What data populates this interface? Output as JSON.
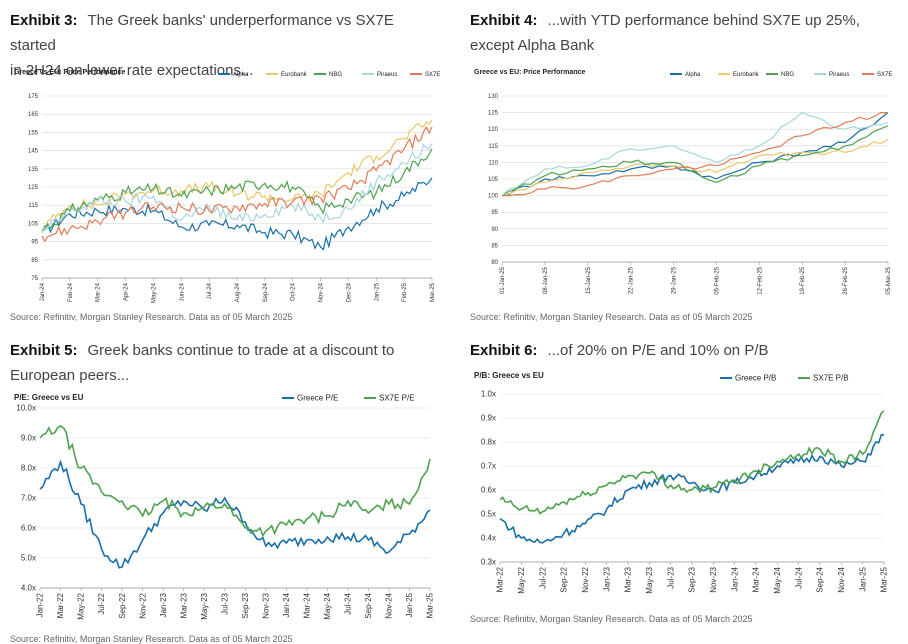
{
  "exhibits": [
    {
      "number": "Exhibit 3:",
      "title_line1": "The Greek banks' underperformance vs SX7E started",
      "title_line2": "in 2H24 on lower rate expectations...",
      "source": "Source: Refinitiv, Morgan Stanley Research. Data as of 05 March 2025"
    },
    {
      "number": "Exhibit 4:",
      "title_line1": "...with YTD performance behind SX7E up 25%,",
      "title_line2": "except Alpha Bank",
      "source": "Source: Refinitiv, Morgan Stanley Research. Data as of 05 March 2025"
    },
    {
      "number": "Exhibit 5:",
      "title_line1": "Greek banks continue to trade at a discount to",
      "title_line2": "European peers...",
      "source": "Source: Refinitiv, Morgan Stanley Research. Data as of 05 March 2025"
    },
    {
      "number": "Exhibit 6:",
      "title_line1": "...of 20% on P/E and 10% on P/B",
      "title_line2": "",
      "source": "Source: Refinitiv, Morgan Stanley Research. Data as of 05 March 2025"
    }
  ],
  "chart_data": [
    {
      "type": "line",
      "title": "Greece vs EU: Price Performance",
      "ylim": [
        75,
        175
      ],
      "yticks": [
        "75",
        "85",
        "95",
        "105",
        "115",
        "125",
        "135",
        "145",
        "155",
        "165",
        "175"
      ],
      "x": [
        "Jan-24",
        "Feb-24",
        "Mar-24",
        "Apr-24",
        "May-24",
        "Jun-24",
        "Jul-24",
        "Aug-24",
        "Sep-24",
        "Oct-24",
        "Nov-24",
        "Dec-24",
        "Jan-25",
        "Feb-25",
        "Mar-25"
      ],
      "legend_position": "top-right",
      "series": [
        {
          "name": "Alpha",
          "color": "#1a6fa8",
          "values": [
            100,
            110,
            112,
            113,
            112,
            103,
            104,
            104,
            100,
            99,
            92,
            103,
            113,
            120,
            130
          ]
        },
        {
          "name": "Eurobank",
          "color": "#e8c86a",
          "values": [
            102,
            115,
            115,
            121,
            123,
            123,
            125,
            121,
            120,
            118,
            121,
            133,
            142,
            152,
            162
          ]
        },
        {
          "name": "NBG",
          "color": "#4ea24e",
          "values": [
            101,
            112,
            118,
            122,
            124,
            120,
            123,
            125,
            127,
            125,
            113,
            118,
            122,
            133,
            146
          ]
        },
        {
          "name": "Piraeus",
          "color": "#a8d5dd",
          "values": [
            100,
            111,
            117,
            117,
            120,
            107,
            114,
            107,
            110,
            115,
            108,
            113,
            128,
            138,
            149
          ]
        },
        {
          "name": "SX7E",
          "color": "#e07b56",
          "values": [
            98,
            102,
            106,
            111,
            114,
            114,
            112,
            114,
            116,
            117,
            119,
            124,
            134,
            146,
            158
          ]
        }
      ]
    },
    {
      "type": "line",
      "title": "Greece vs EU: Price Performance",
      "ylim": [
        80,
        130
      ],
      "yticks": [
        "80",
        "85",
        "90",
        "95",
        "100",
        "105",
        "110",
        "115",
        "120",
        "125",
        "130"
      ],
      "x": [
        "01-Jan-25",
        "08-Jan-25",
        "15-Jan-25",
        "22-Jan-25",
        "29-Jan-25",
        "05-Feb-25",
        "12-Feb-25",
        "19-Feb-25",
        "26-Feb-25",
        "05-Mar-25"
      ],
      "legend_position": "top-right",
      "series": [
        {
          "name": "Alpha",
          "color": "#1a6fa8",
          "values": [
            100,
            105,
            106,
            108,
            109,
            105,
            110,
            113,
            116,
            125
          ]
        },
        {
          "name": "Eurobank",
          "color": "#e8c86a",
          "values": [
            100,
            104,
            107,
            109,
            109,
            107,
            112,
            113,
            113,
            117
          ]
        },
        {
          "name": "NBG",
          "color": "#4ea24e",
          "values": [
            100,
            106,
            108,
            110,
            110,
            104,
            109,
            112,
            115,
            121
          ]
        },
        {
          "name": "Piraeus",
          "color": "#a8d5dd",
          "values": [
            100,
            108,
            109,
            114,
            115,
            110,
            115,
            125,
            120,
            122
          ]
        },
        {
          "name": "SX7E",
          "color": "#e07b56",
          "values": [
            100,
            102,
            103,
            106,
            108,
            109,
            113,
            118,
            122,
            125
          ]
        }
      ]
    },
    {
      "type": "line",
      "title": "P/E: Greece vs EU",
      "ylim": [
        4.0,
        10.0
      ],
      "yticks": [
        "4.0x",
        "5.0x",
        "6.0x",
        "7.0x",
        "8.0x",
        "9.0x",
        "10.0x"
      ],
      "x": [
        "Jan-22",
        "Mar-22",
        "May-22",
        "Jul-22",
        "Sep-22",
        "Nov-22",
        "Jan-23",
        "Mar-23",
        "May-23",
        "Jul-23",
        "Sep-23",
        "Nov-23",
        "Jan-24",
        "Mar-24",
        "May-24",
        "Jul-24",
        "Sep-24",
        "Nov-24",
        "Jan-25",
        "Mar-25"
      ],
      "legend_position": "top-right",
      "series": [
        {
          "name": "Greece P/E",
          "color": "#1a6fa8",
          "values": [
            7.3,
            8.2,
            6.8,
            5.3,
            4.7,
            5.6,
            6.5,
            6.9,
            6.6,
            7.0,
            6.2,
            5.4,
            5.5,
            5.6,
            5.7,
            5.7,
            5.6,
            5.2,
            5.8,
            6.6
          ]
        },
        {
          "name": "SX7E P/E",
          "color": "#4ea24e",
          "values": [
            9.0,
            9.4,
            8.0,
            7.2,
            6.9,
            6.4,
            6.9,
            6.5,
            6.7,
            6.8,
            6.0,
            5.9,
            6.1,
            6.3,
            6.4,
            6.9,
            6.5,
            6.8,
            6.8,
            8.3
          ]
        }
      ]
    },
    {
      "type": "line",
      "title": "P/B: Greece vs EU",
      "ylim": [
        0.3,
        1.0
      ],
      "yticks": [
        "0.3x",
        "0.4x",
        "0.5x",
        "0.6x",
        "0.7x",
        "0.8x",
        "0.9x",
        "1.0x"
      ],
      "x": [
        "Mar-22",
        "May-22",
        "Jul-22",
        "Sep-22",
        "Nov-22",
        "Jan-23",
        "Mar-23",
        "May-23",
        "Jul-23",
        "Sep-23",
        "Nov-23",
        "Jan-24",
        "Mar-24",
        "May-24",
        "Jul-24",
        "Sep-24",
        "Nov-24",
        "Jan-25",
        "Mar-25"
      ],
      "legend_position": "top-right",
      "series": [
        {
          "name": "Greece P/B",
          "color": "#1a6fa8",
          "values": [
            0.48,
            0.4,
            0.38,
            0.42,
            0.46,
            0.52,
            0.6,
            0.63,
            0.66,
            0.63,
            0.6,
            0.63,
            0.66,
            0.7,
            0.72,
            0.74,
            0.7,
            0.72,
            0.83
          ]
        },
        {
          "name": "SX7E P/B",
          "color": "#4ea24e",
          "values": [
            0.56,
            0.52,
            0.51,
            0.55,
            0.58,
            0.62,
            0.66,
            0.67,
            0.62,
            0.6,
            0.61,
            0.64,
            0.68,
            0.72,
            0.75,
            0.77,
            0.72,
            0.75,
            0.93
          ]
        }
      ]
    }
  ]
}
